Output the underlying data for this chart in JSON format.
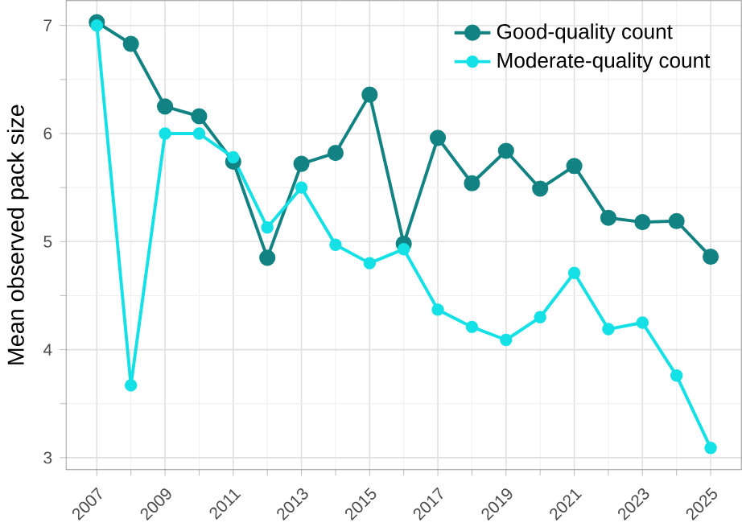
{
  "chart_data": {
    "type": "line",
    "ylabel": "Mean observed pack size",
    "x": [
      2007,
      2008,
      2009,
      2010,
      2011,
      2012,
      2013,
      2014,
      2015,
      2016,
      2017,
      2018,
      2019,
      2020,
      2021,
      2022,
      2023,
      2024,
      2025
    ],
    "series": [
      {
        "name": "Good-quality count",
        "color": "#128282",
        "values": [
          7.03,
          6.83,
          6.25,
          6.16,
          5.74,
          4.85,
          5.72,
          5.82,
          6.36,
          4.98,
          5.96,
          5.54,
          5.84,
          5.49,
          5.7,
          5.22,
          5.18,
          5.19,
          4.86
        ]
      },
      {
        "name": "Moderate-quality count",
        "color": "#14e1e6",
        "values": [
          7.0,
          3.67,
          6.0,
          6.0,
          5.78,
          5.13,
          5.5,
          4.97,
          4.8,
          4.93,
          4.37,
          4.21,
          4.09,
          4.3,
          4.71,
          4.19,
          4.25,
          3.76,
          3.09
        ]
      }
    ],
    "xlim": [
      2006.1,
      2025.9
    ],
    "ylim": [
      2.89,
      7.23
    ],
    "xticks": [
      2007,
      2009,
      2011,
      2013,
      2015,
      2017,
      2019,
      2021,
      2023,
      2025
    ],
    "yticks": [
      3,
      4,
      5,
      6,
      7
    ],
    "grid": true,
    "legend": "top right",
    "marker": "circle",
    "line_style": "solid"
  }
}
